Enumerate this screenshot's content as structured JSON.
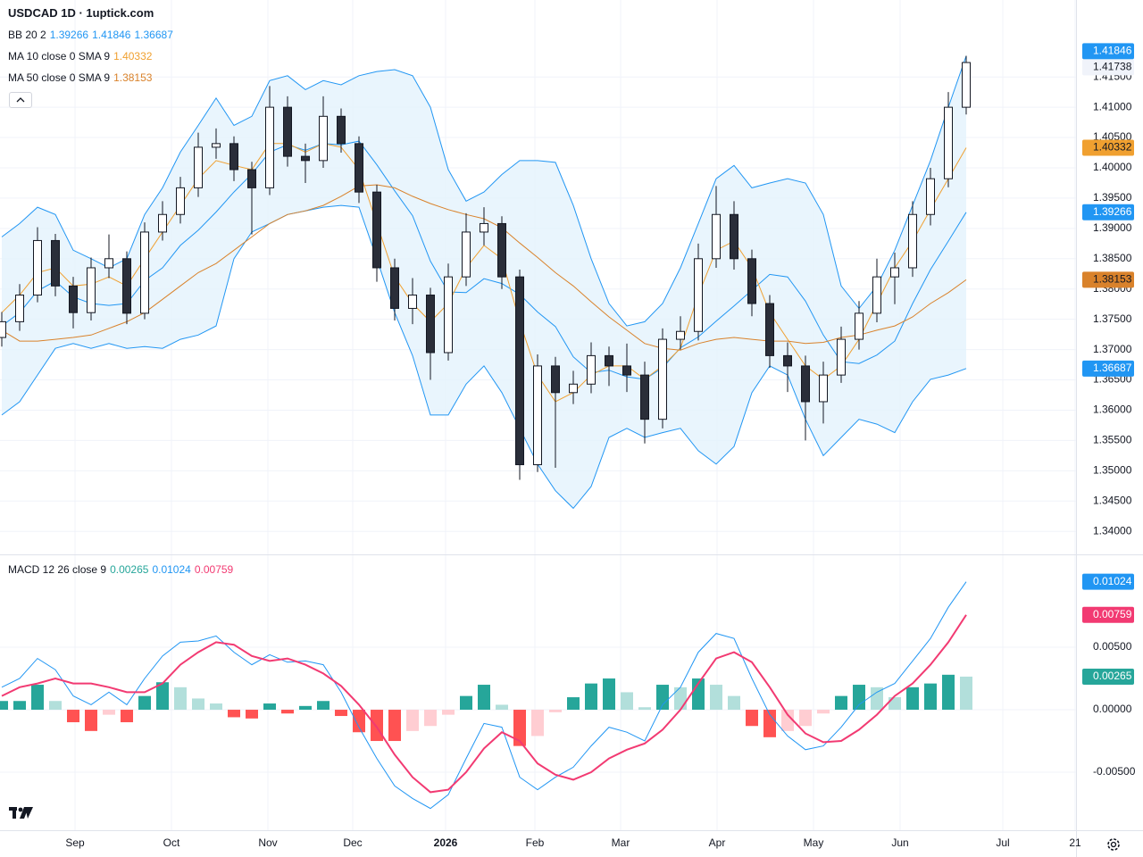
{
  "chart_data": {
    "title": "USDCAD 1D · 1uptick.com",
    "xlim": [
      -0.1,
      60.15
    ],
    "xticks": [
      {
        "value": 4.1,
        "label": "Sep"
      },
      {
        "value": 9.5,
        "label": "Oct"
      },
      {
        "value": 14.9,
        "label": "Nov"
      },
      {
        "value": 19.65,
        "label": "Dec"
      },
      {
        "value": 24.85,
        "label": "2026",
        "bold": true
      },
      {
        "value": 29.85,
        "label": "Feb"
      },
      {
        "value": 34.65,
        "label": "Mar"
      },
      {
        "value": 40.05,
        "label": "Apr"
      },
      {
        "value": 45.45,
        "label": "May"
      },
      {
        "value": 50.3,
        "label": "Jun"
      },
      {
        "value": 56.05,
        "label": "Jul"
      },
      {
        "value": 60.1,
        "label": "21"
      }
    ],
    "panels": [
      {
        "type": "candlestick",
        "ylim": [
          1.3362,
          1.4277
        ],
        "yticks": [
          {
            "value": 1.34,
            "label": "1.34000"
          },
          {
            "value": 1.345,
            "label": "1.34500"
          },
          {
            "value": 1.35,
            "label": "1.35000"
          },
          {
            "value": 1.355,
            "label": "1.35500"
          },
          {
            "value": 1.36,
            "label": "1.36000"
          },
          {
            "value": 1.365,
            "label": "1.36500"
          },
          {
            "value": 1.37,
            "label": "1.37000"
          },
          {
            "value": 1.375,
            "label": "1.37500"
          },
          {
            "value": 1.38,
            "label": "1.38000"
          },
          {
            "value": 1.385,
            "label": "1.38500"
          },
          {
            "value": 1.39,
            "label": "1.39000"
          },
          {
            "value": 1.395,
            "label": "1.39500"
          },
          {
            "value": 1.4,
            "label": "1.40000"
          },
          {
            "value": 1.405,
            "label": "1.40500"
          },
          {
            "value": 1.41,
            "label": "1.41000"
          },
          {
            "value": 1.415,
            "label": "1.41500"
          }
        ],
        "up_color": "#ffffff",
        "down_color": "#2a2e39",
        "wick_color": "#131722",
        "last_price_color": "#f0f3fa",
        "last_price_text_color": "#131722",
        "open": [
          1.372,
          1.3746,
          1.379,
          1.388,
          1.3805,
          1.3761,
          1.3835,
          1.385,
          1.376,
          1.3894,
          1.3923,
          1.3967,
          1.4034,
          1.404,
          1.3997,
          1.3967,
          1.41,
          1.4019,
          1.4012,
          1.4085,
          1.404,
          1.396,
          1.3835,
          1.3768,
          1.379,
          1.3695,
          1.382,
          1.3894,
          1.3908,
          1.382,
          1.351,
          1.3673,
          1.3629,
          1.3643,
          1.369,
          1.3673,
          1.3658,
          1.3585,
          1.3717,
          1.373,
          1.385,
          1.3923,
          1.385,
          1.3776,
          1.369,
          1.3673,
          1.3614,
          1.3658,
          1.3717,
          1.376,
          1.382,
          1.3835,
          1.3923,
          1.3982,
          1.41
        ],
        "high": [
          1.3762,
          1.3808,
          1.3902,
          1.3891,
          1.382,
          1.3852,
          1.389,
          1.3862,
          1.391,
          1.3945,
          1.3985,
          1.4058,
          1.4065,
          1.4052,
          1.401,
          1.4135,
          1.4118,
          1.404,
          1.4118,
          1.4098,
          1.4052,
          1.3972,
          1.385,
          1.3818,
          1.3802,
          1.3842,
          1.3925,
          1.3935,
          1.392,
          1.3832,
          1.3692,
          1.3688,
          1.3665,
          1.3712,
          1.3705,
          1.371,
          1.368,
          1.3735,
          1.3755,
          1.3875,
          1.397,
          1.3945,
          1.3865,
          1.379,
          1.3712,
          1.369,
          1.368,
          1.3738,
          1.378,
          1.385,
          1.386,
          1.3945,
          1.4,
          1.4125,
          1.4185
        ],
        "low": [
          1.3705,
          1.3731,
          1.3778,
          1.3788,
          1.3735,
          1.3748,
          1.3818,
          1.3742,
          1.375,
          1.388,
          1.3908,
          1.3952,
          1.4015,
          1.3978,
          1.389,
          1.3955,
          1.4002,
          1.3975,
          1.4,
          1.4025,
          1.3942,
          1.3812,
          1.3748,
          1.3742,
          1.365,
          1.3682,
          1.3805,
          1.3872,
          1.38,
          1.3485,
          1.3498,
          1.3505,
          1.361,
          1.3628,
          1.364,
          1.363,
          1.3545,
          1.357,
          1.37,
          1.3715,
          1.3835,
          1.3832,
          1.3755,
          1.367,
          1.363,
          1.355,
          1.3578,
          1.3645,
          1.37,
          1.3745,
          1.3775,
          1.382,
          1.3905,
          1.3968,
          1.4088
        ],
        "close": [
          1.3746,
          1.379,
          1.388,
          1.3805,
          1.3761,
          1.3835,
          1.385,
          1.376,
          1.3894,
          1.3923,
          1.3967,
          1.4034,
          1.404,
          1.3997,
          1.3967,
          1.41,
          1.4019,
          1.4012,
          1.4085,
          1.404,
          1.396,
          1.3835,
          1.3768,
          1.379,
          1.3695,
          1.382,
          1.3894,
          1.3908,
          1.382,
          1.351,
          1.3673,
          1.3629,
          1.3643,
          1.369,
          1.3673,
          1.3658,
          1.3585,
          1.3717,
          1.373,
          1.385,
          1.3923,
          1.385,
          1.3776,
          1.369,
          1.3673,
          1.3614,
          1.3658,
          1.3717,
          1.376,
          1.382,
          1.3835,
          1.3923,
          1.3982,
          1.41,
          1.41738
        ],
        "indicators": [
          {
            "label": "BB 20 2",
            "fill": "#e3f2fd",
            "series": [
              {
                "role": "basis",
                "color": "#2196f3",
                "badge_text_color": "#ffffff",
                "values": [
                  1.3739,
                  1.3761,
                  1.3797,
                  1.3813,
                  1.3787,
                  1.3776,
                  1.3773,
                  1.3776,
                  1.3814,
                  1.3835,
                  1.3872,
                  1.3897,
                  1.3927,
                  1.396,
                  1.399,
                  1.4026,
                  1.4038,
                  1.4029,
                  1.404,
                  1.4038,
                  1.4044,
                  1.4005,
                  1.3962,
                  1.3921,
                  1.3846,
                  1.3795,
                  1.3794,
                  1.3817,
                  1.3809,
                  1.3791,
                  1.3762,
                  1.3738,
                  1.3688,
                  1.3662,
                  1.3666,
                  1.3655,
                  1.3651,
                  1.367,
                  1.3703,
                  1.3721,
                  1.3747,
                  1.3772,
                  1.3798,
                  1.3824,
                  1.382,
                  1.378,
                  1.3724,
                  1.368,
                  1.3677,
                  1.3691,
                  1.3714,
                  1.3776,
                  1.3832,
                  1.3879,
                  1.39266
                ]
              },
              {
                "role": "upper",
                "color": "#2196f3",
                "badge_text_color": "#ffffff",
                "values": [
                  1.3886,
                  1.3908,
                  1.3935,
                  1.3923,
                  1.3864,
                  1.385,
                  1.3835,
                  1.385,
                  1.3923,
                  1.3967,
                  1.4026,
                  1.407,
                  1.4115,
                  1.407,
                  1.4085,
                  1.4144,
                  1.4152,
                  1.4129,
                  1.4144,
                  1.4137,
                  1.4152,
                  1.4159,
                  1.4162,
                  1.4152,
                  1.41,
                  1.3997,
                  1.3945,
                  1.396,
                  1.3989,
                  1.4012,
                  1.4012,
                  1.4009,
                  1.3938,
                  1.385,
                  1.3776,
                  1.3739,
                  1.3746,
                  1.3776,
                  1.3835,
                  1.3908,
                  1.3982,
                  1.4004,
                  1.3967,
                  1.3975,
                  1.3982,
                  1.3975,
                  1.3923,
                  1.3805,
                  1.3768,
                  1.3805,
                  1.3864,
                  1.3938,
                  1.4012,
                  1.41,
                  1.41846
                ]
              },
              {
                "role": "lower",
                "color": "#2196f3",
                "badge_text_color": "#ffffff",
                "values": [
                  1.3592,
                  1.3614,
                  1.3658,
                  1.3702,
                  1.371,
                  1.3702,
                  1.371,
                  1.3702,
                  1.3705,
                  1.3702,
                  1.3717,
                  1.3724,
                  1.3739,
                  1.385,
                  1.3894,
                  1.3908,
                  1.3923,
                  1.3929,
                  1.3935,
                  1.3938,
                  1.3935,
                  1.385,
                  1.3761,
                  1.369,
                  1.3592,
                  1.3592,
                  1.3643,
                  1.3673,
                  1.3629,
                  1.357,
                  1.3511,
                  1.3467,
                  1.3438,
                  1.3474,
                  1.3555,
                  1.357,
                  1.3555,
                  1.3563,
                  1.357,
                  1.3533,
                  1.3511,
                  1.354,
                  1.3629,
                  1.3673,
                  1.3658,
                  1.3585,
                  1.3525,
                  1.3555,
                  1.3585,
                  1.3577,
                  1.3563,
                  1.3614,
                  1.3651,
                  1.3658,
                  1.36687
                ]
              }
            ]
          },
          {
            "label": "MA 10 close 0 SMA 9",
            "series": [
              {
                "color": "#f0a030",
                "badge_text_color": "#131722",
                "values": [
                  1.3761,
                  1.379,
                  1.3827,
                  1.3835,
                  1.3805,
                  1.3808,
                  1.382,
                  1.3805,
                  1.385,
                  1.3894,
                  1.3938,
                  1.3982,
                  1.4012,
                  1.4004,
                  1.3997,
                  1.404,
                  1.404,
                  1.4026,
                  1.404,
                  1.4034,
                  1.3997,
                  1.3908,
                  1.382,
                  1.3776,
                  1.3746,
                  1.3776,
                  1.3835,
                  1.3872,
                  1.385,
                  1.3746,
                  1.3658,
                  1.3614,
                  1.3629,
                  1.3658,
                  1.3673,
                  1.3673,
                  1.3651,
                  1.3673,
                  1.3702,
                  1.379,
                  1.3864,
                  1.3879,
                  1.3835,
                  1.3761,
                  1.3717,
                  1.3673,
                  1.3651,
                  1.3673,
                  1.3717,
                  1.3776,
                  1.3835,
                  1.3879,
                  1.3931,
                  1.3982,
                  1.40332
                ]
              }
            ]
          },
          {
            "label": "MA 50 close 0 SMA 9",
            "series": [
              {
                "color": "#d9822b",
                "badge_text_color": "#131722",
                "values": [
                  1.3732,
                  1.3714,
                  1.3714,
                  1.3717,
                  1.372,
                  1.3724,
                  1.3735,
                  1.3746,
                  1.3761,
                  1.3783,
                  1.3805,
                  1.3827,
                  1.3842,
                  1.3864,
                  1.3886,
                  1.3908,
                  1.3923,
                  1.3929,
                  1.3938,
                  1.3953,
                  1.397,
                  1.3972,
                  1.3967,
                  1.3953,
                  1.3941,
                  1.3931,
                  1.3923,
                  1.3916,
                  1.3901,
                  1.3876,
                  1.3852,
                  1.3827,
                  1.3805,
                  1.3779,
                  1.3754,
                  1.3732,
                  1.371,
                  1.3702,
                  1.3699,
                  1.371,
                  1.3717,
                  1.372,
                  1.3717,
                  1.3714,
                  1.3714,
                  1.371,
                  1.3712,
                  1.372,
                  1.3724,
                  1.3732,
                  1.3739,
                  1.3754,
                  1.3776,
                  1.3794,
                  1.38153
                ]
              }
            ]
          }
        ]
      },
      {
        "type": "macd",
        "label": "MACD 12 26 close 9",
        "ylim": [
          -0.00964,
          0.01236
        ],
        "yticks": [
          {
            "value": -0.005,
            "label": "-0.00500"
          },
          {
            "value": 0,
            "label": "0.00000"
          },
          {
            "value": 0.005,
            "label": "0.00500"
          }
        ],
        "series": [
          {
            "kind": "histogram",
            "color": "#26a69a",
            "badge_text_color": "#ffffff",
            "shade_colors": [
              "#26a69a",
              "#b2dfdb",
              "#ff5252",
              "#ffcdd2"
            ],
            "values": [
              0.0007,
              0.0007,
              0.002,
              0.0007,
              -0.001,
              -0.0017,
              -0.0004,
              -0.001,
              0.0011,
              0.0022,
              0.0018,
              0.0009,
              0.0005,
              -0.0006,
              -0.0007,
              0.0005,
              -0.0003,
              0.0003,
              0.0007,
              -0.0005,
              -0.0018,
              -0.0025,
              -0.0025,
              -0.0017,
              -0.0013,
              -0.0004,
              0.0011,
              0.002,
              0.0004,
              -0.0029,
              -0.0021,
              -0.0002,
              0.001,
              0.0021,
              0.0025,
              0.0014,
              0.0002,
              0.002,
              0.0018,
              0.0025,
              0.002,
              0.0011,
              -0.0013,
              -0.0022,
              -0.0017,
              -0.0013,
              -0.0003,
              0.0011,
              0.002,
              0.0018,
              0.001,
              0.0018,
              0.0021,
              0.0028,
              0.00265
            ]
          },
          {
            "kind": "line",
            "color": "#2196f3",
            "badge_text_color": "#ffffff",
            "width": 1,
            "values": [
              0.0018,
              0.0025,
              0.0041,
              0.0032,
              0.0011,
              0.0004,
              0.0014,
              0.0004,
              0.0025,
              0.0043,
              0.0054,
              0.0055,
              0.0059,
              0.0046,
              0.0036,
              0.0044,
              0.0038,
              0.0039,
              0.0036,
              0.0014,
              -0.0014,
              -0.0039,
              -0.0061,
              -0.0071,
              -0.0079,
              -0.0068,
              -0.0039,
              -0.0011,
              -0.0014,
              -0.0054,
              -0.0064,
              -0.0054,
              -0.0046,
              -0.0029,
              -0.0014,
              -0.0018,
              -0.0025,
              0.0004,
              0.0018,
              0.0046,
              0.0061,
              0.0057,
              0.0025,
              -0.0004,
              -0.0021,
              -0.0032,
              -0.0029,
              -0.0014,
              0.0004,
              0.0014,
              0.0021,
              0.0039,
              0.0057,
              0.0082,
              0.01024
            ]
          },
          {
            "kind": "line",
            "color": "#f23a72",
            "badge_text_color": "#ffffff",
            "width": 2,
            "values": [
              0.0011,
              0.0018,
              0.0021,
              0.0025,
              0.0021,
              0.0021,
              0.0018,
              0.0014,
              0.0014,
              0.0021,
              0.0036,
              0.0046,
              0.0054,
              0.0052,
              0.0043,
              0.0039,
              0.0041,
              0.0036,
              0.0029,
              0.0019,
              0.0004,
              -0.0014,
              -0.0036,
              -0.0054,
              -0.0066,
              -0.0064,
              -0.005,
              -0.0031,
              -0.0018,
              -0.0025,
              -0.0043,
              -0.0052,
              -0.0056,
              -0.005,
              -0.0039,
              -0.0032,
              -0.0027,
              -0.0016,
              0.0,
              0.0021,
              0.0041,
              0.0046,
              0.0038,
              0.0018,
              -0.0004,
              -0.0019,
              -0.0026,
              -0.0025,
              -0.0016,
              -0.0004,
              0.0011,
              0.0021,
              0.0036,
              0.0054,
              0.00759
            ]
          }
        ]
      }
    ]
  }
}
